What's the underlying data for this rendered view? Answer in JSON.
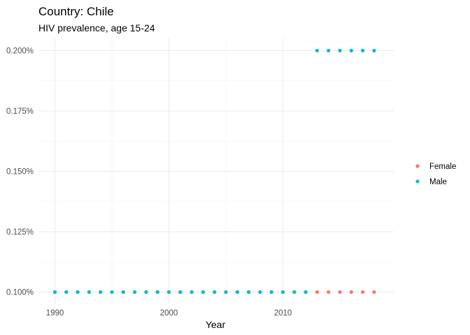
{
  "chart_data": {
    "type": "scatter",
    "title": "Country: Chile",
    "subtitle": "HIV prevalence, age 15-24",
    "xlabel": "Year",
    "ylabel": "",
    "xlim": [
      1989.5,
      2018.5
    ],
    "ylim": [
      0.1,
      0.2
    ],
    "x_ticks": [
      1990,
      2000,
      2010
    ],
    "x_tick_labels": [
      "1990",
      "2000",
      "2010"
    ],
    "y_ticks": [
      0.1,
      0.125,
      0.15,
      0.175,
      0.2
    ],
    "y_tick_labels": [
      "0.100%",
      "0.125%",
      "0.150%",
      "0.175%",
      "0.200%"
    ],
    "grid": true,
    "legend_position": "right",
    "series": [
      {
        "name": "Female",
        "color": "#F8766D",
        "x": [
          1990,
          1991,
          1992,
          1993,
          1994,
          1995,
          1996,
          1997,
          1998,
          1999,
          2000,
          2001,
          2002,
          2003,
          2004,
          2005,
          2006,
          2007,
          2008,
          2009,
          2010,
          2011,
          2012,
          2013,
          2014,
          2015,
          2016,
          2017,
          2018
        ],
        "y": [
          0.1,
          0.1,
          0.1,
          0.1,
          0.1,
          0.1,
          0.1,
          0.1,
          0.1,
          0.1,
          0.1,
          0.1,
          0.1,
          0.1,
          0.1,
          0.1,
          0.1,
          0.1,
          0.1,
          0.1,
          0.1,
          0.1,
          0.1,
          0.1,
          0.1,
          0.1,
          0.1,
          0.1,
          0.1
        ]
      },
      {
        "name": "Male",
        "color": "#00BFC4",
        "x": [
          1990,
          1991,
          1992,
          1993,
          1994,
          1995,
          1996,
          1997,
          1998,
          1999,
          2000,
          2001,
          2002,
          2003,
          2004,
          2005,
          2006,
          2007,
          2008,
          2009,
          2010,
          2011,
          2012,
          2013,
          2014,
          2015,
          2016,
          2017,
          2018
        ],
        "y": [
          0.1,
          0.1,
          0.1,
          0.1,
          0.1,
          0.1,
          0.1,
          0.1,
          0.1,
          0.1,
          0.1,
          0.1,
          0.1,
          0.1,
          0.1,
          0.1,
          0.1,
          0.1,
          0.1,
          0.1,
          0.1,
          0.1,
          0.1,
          0.2,
          0.2,
          0.2,
          0.2,
          0.2,
          0.2
        ]
      }
    ]
  }
}
